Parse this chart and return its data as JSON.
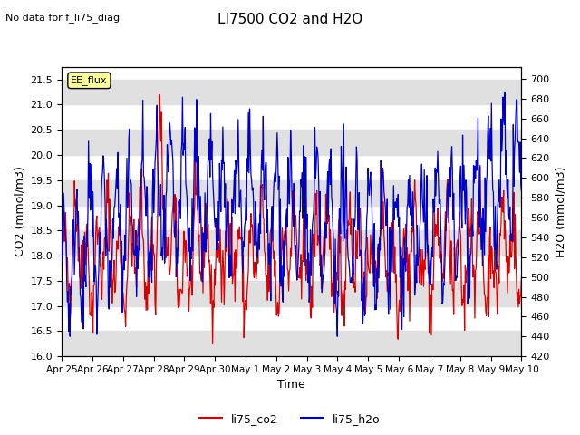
{
  "title": "LI7500 CO2 and H2O",
  "subtitle": "No data for f_li75_diag",
  "xlabel": "Time",
  "ylabel_left": "CO2 (mmol/m3)",
  "ylabel_right": "H2O (mmol/m3)",
  "ylim_left": [
    16.0,
    21.75
  ],
  "ylim_right": [
    420,
    712
  ],
  "yticks_left": [
    16.0,
    16.5,
    17.0,
    17.5,
    18.0,
    18.5,
    19.0,
    19.5,
    20.0,
    20.5,
    21.0,
    21.5
  ],
  "yticks_right": [
    420,
    440,
    460,
    480,
    500,
    520,
    540,
    560,
    580,
    600,
    620,
    640,
    660,
    680,
    700
  ],
  "xtick_positions": [
    0,
    1,
    2,
    3,
    4,
    5,
    6,
    7,
    8,
    9,
    10,
    11,
    12,
    13,
    14,
    15
  ],
  "xtick_labels": [
    "Apr 25",
    "Apr 26",
    "Apr 27",
    "Apr 28",
    "Apr 29",
    "Apr 30",
    "May 1",
    "May 2",
    "May 3",
    "May 4",
    "May 5",
    "May 6",
    "May 7",
    "May 8",
    "May 9",
    "May 10"
  ],
  "legend_label_co2": "li75_co2",
  "legend_label_h2o": "li75_h2o",
  "color_co2": "#dd0000",
  "color_h2o": "#0000cc",
  "band_color": "#e0e0e0",
  "annotation_text": "EE_flux"
}
